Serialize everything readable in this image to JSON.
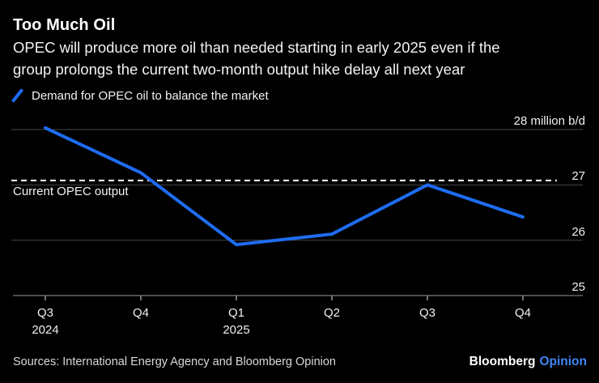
{
  "header": {
    "title": "Too Much Oil",
    "subtitle_lines": [
      "OPEC will produce more oil than needed starting in early 2025 even if the",
      "group prolongs the current two-month output hike delay all next year"
    ],
    "legend": {
      "label": "Demand for OPEC oil to balance the market"
    }
  },
  "chart_data": {
    "type": "line",
    "title": "Too Much Oil",
    "subtitle": "OPEC will produce more oil than needed starting in early 2025 even if the group prolongs the current two-month output hike delay all next year",
    "unit": "million b/d",
    "categories": [
      "Q3 2024",
      "Q4 2024",
      "Q1 2025",
      "Q2 2025",
      "Q3 2025",
      "Q4 2025"
    ],
    "series": [
      {
        "name": "Demand for OPEC oil to balance the market",
        "color": "#1e6cf2",
        "values": [
          28.03,
          27.22,
          25.92,
          26.11,
          27.0,
          26.42
        ]
      }
    ],
    "reference_line": {
      "label": "Current OPEC output",
      "value": 27.08,
      "style": "dashed",
      "color": "#ffffff"
    },
    "ylim": [
      25,
      28
    ],
    "y_ticks": [
      28,
      27,
      26,
      25
    ],
    "y_tick_labels": [
      "28 million b/d",
      "27",
      "26",
      "25"
    ],
    "x_tick_labels": [
      {
        "q": "Q3",
        "year": "2024"
      },
      {
        "q": "Q4",
        "year": ""
      },
      {
        "q": "Q1",
        "year": "2025"
      },
      {
        "q": "Q2",
        "year": ""
      },
      {
        "q": "Q3",
        "year": ""
      },
      {
        "q": "Q4",
        "year": ""
      }
    ],
    "grid": "horizontal-only",
    "legend_position": "top-left"
  },
  "footer": {
    "sources": "Sources: International Energy Agency and Bloomberg Opinion",
    "brand": {
      "name": "Bloomberg",
      "edition": "Opinion"
    }
  },
  "colors": {
    "background": "#000000",
    "accent": "#1e6cf2",
    "text": "#f5f5f5",
    "muted_text": "#d9d9d9",
    "gridline": "#464646",
    "axis": "#999999",
    "reference": "#ffffff",
    "opinion_blue": "#4286f5"
  }
}
